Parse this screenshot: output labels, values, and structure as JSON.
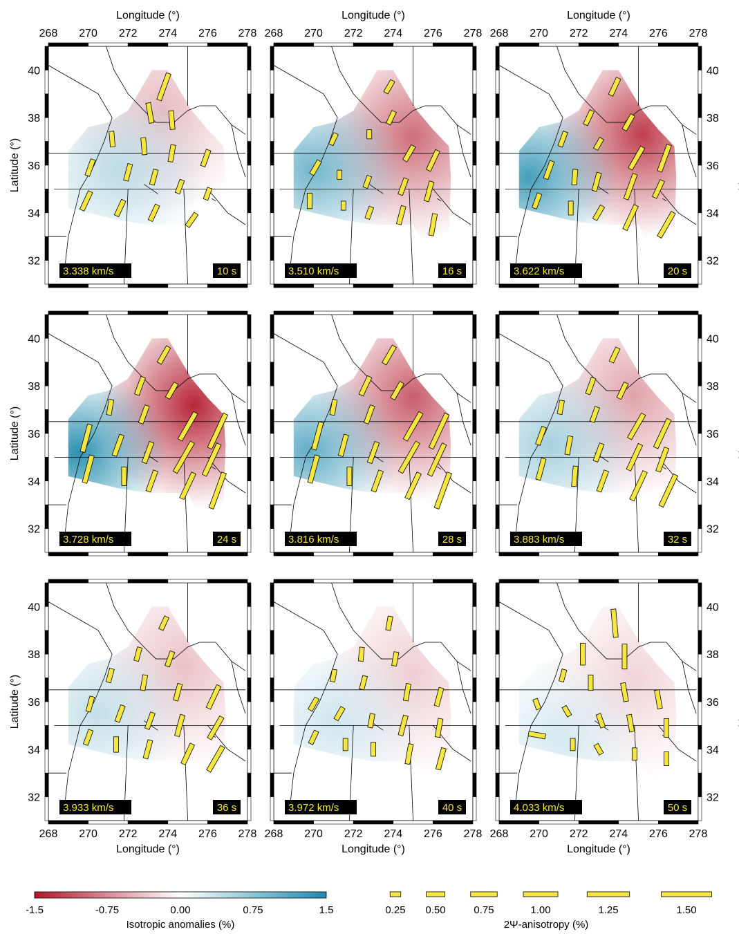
{
  "figure": {
    "x_axis_label": "Longitude (°)",
    "y_axis_label": "Latitude (°)",
    "x_ticks": [
      "268",
      "270",
      "272",
      "274",
      "276",
      "278"
    ],
    "y_ticks": [
      "32",
      "34",
      "36",
      "38",
      "40"
    ]
  },
  "chart_data": [
    {
      "type": "heatmap",
      "period_label": "10 s",
      "velocity_label": "3.338 km/s",
      "x_range": [
        268,
        278
      ],
      "y_range": [
        31,
        41
      ],
      "max_anomaly": 0.45,
      "centers": {
        "red": [
          273.7,
          38.3
        ],
        "blue": [
          271.5,
          35.8
        ]
      },
      "bars": [
        [
          273.8,
          39.3,
          20,
          0.8
        ],
        [
          273.1,
          38.2,
          -10,
          0.55
        ],
        [
          274.2,
          37.9,
          -5,
          0.5
        ],
        [
          271.2,
          37.1,
          -5,
          0.4
        ],
        [
          272.8,
          36.8,
          -5,
          0.45
        ],
        [
          274.2,
          36.5,
          10,
          0.45
        ],
        [
          275.9,
          36.3,
          20,
          0.45
        ],
        [
          270.1,
          35.9,
          20,
          0.45
        ],
        [
          272.0,
          35.7,
          15,
          0.45
        ],
        [
          273.3,
          35.5,
          15,
          0.4
        ],
        [
          274.6,
          35.1,
          20,
          0.35
        ],
        [
          276.0,
          34.8,
          20,
          0.3
        ],
        [
          269.9,
          34.5,
          25,
          0.55
        ],
        [
          271.6,
          34.2,
          25,
          0.45
        ],
        [
          273.3,
          34.0,
          25,
          0.45
        ],
        [
          275.2,
          33.7,
          35,
          0.4
        ]
      ]
    },
    {
      "type": "heatmap",
      "period_label": "16 s",
      "velocity_label": "3.510 km/s",
      "x_range": [
        268,
        278
      ],
      "y_range": [
        31,
        41
      ],
      "max_anomaly": 0.95,
      "centers": {
        "red": [
          275.0,
          37.2
        ],
        "blue": [
          270.0,
          35.8
        ]
      },
      "bars": [
        [
          273.8,
          39.3,
          30,
          0.35
        ],
        [
          273.9,
          38.0,
          25,
          0.35
        ],
        [
          272.8,
          37.3,
          0,
          0.2
        ],
        [
          271.0,
          37.1,
          25,
          0.3
        ],
        [
          274.8,
          36.5,
          30,
          0.45
        ],
        [
          276.0,
          36.2,
          25,
          0.6
        ],
        [
          270.1,
          35.9,
          30,
          0.4
        ],
        [
          271.3,
          35.6,
          0,
          0.2
        ],
        [
          272.7,
          35.3,
          20,
          0.3
        ],
        [
          274.5,
          35.1,
          20,
          0.45
        ],
        [
          275.8,
          34.9,
          15,
          0.55
        ],
        [
          269.8,
          34.5,
          0,
          0.4
        ],
        [
          271.5,
          34.3,
          0,
          0.2
        ],
        [
          272.8,
          34.0,
          20,
          0.3
        ],
        [
          274.4,
          33.9,
          15,
          0.5
        ],
        [
          276.0,
          33.5,
          10,
          0.6
        ]
      ]
    },
    {
      "type": "heatmap",
      "period_label": "20 s",
      "velocity_label": "3.622 km/s",
      "x_range": [
        268,
        278
      ],
      "y_range": [
        31,
        41
      ],
      "max_anomaly": 1.25,
      "centers": {
        "red": [
          275.2,
          37.3
        ],
        "blue": [
          269.5,
          35.5
        ]
      },
      "bars": [
        [
          273.8,
          39.3,
          25,
          0.5
        ],
        [
          272.5,
          38.0,
          25,
          0.4
        ],
        [
          274.5,
          37.8,
          30,
          0.45
        ],
        [
          271.2,
          37.1,
          20,
          0.4
        ],
        [
          273.0,
          36.9,
          30,
          0.3
        ],
        [
          274.9,
          36.3,
          30,
          0.7
        ],
        [
          276.3,
          36.3,
          20,
          0.8
        ],
        [
          270.5,
          35.8,
          20,
          0.5
        ],
        [
          271.8,
          35.5,
          5,
          0.4
        ],
        [
          272.9,
          35.3,
          15,
          0.5
        ],
        [
          274.6,
          35.1,
          20,
          0.75
        ],
        [
          276.0,
          35.0,
          25,
          0.5
        ],
        [
          269.9,
          34.5,
          20,
          0.4
        ],
        [
          271.6,
          34.2,
          0,
          0.35
        ],
        [
          273.0,
          34.0,
          30,
          0.4
        ],
        [
          274.6,
          33.8,
          25,
          0.75
        ],
        [
          276.4,
          33.5,
          30,
          0.8
        ]
      ]
    },
    {
      "type": "heatmap",
      "period_label": "24 s",
      "velocity_label": "3.728 km/s",
      "x_range": [
        268,
        278
      ],
      "y_range": [
        31,
        41
      ],
      "max_anomaly": 1.4,
      "centers": {
        "red": [
          275.3,
          37.2
        ],
        "blue": [
          269.5,
          35.2
        ]
      },
      "bars": [
        [
          273.8,
          39.3,
          30,
          0.5
        ],
        [
          272.6,
          38.0,
          20,
          0.5
        ],
        [
          274.2,
          37.8,
          30,
          0.45
        ],
        [
          271.1,
          37.1,
          10,
          0.4
        ],
        [
          272.8,
          36.8,
          20,
          0.5
        ],
        [
          275.0,
          36.3,
          30,
          0.9
        ],
        [
          276.5,
          36.1,
          25,
          1.1
        ],
        [
          269.9,
          35.8,
          15,
          0.8
        ],
        [
          271.5,
          35.5,
          20,
          0.6
        ],
        [
          273.0,
          35.2,
          20,
          0.6
        ],
        [
          274.8,
          35.0,
          30,
          1.0
        ],
        [
          276.2,
          34.9,
          25,
          1.0
        ],
        [
          270.0,
          34.5,
          15,
          0.8
        ],
        [
          271.8,
          34.2,
          0,
          0.5
        ],
        [
          273.2,
          34.0,
          20,
          0.6
        ],
        [
          275.0,
          33.8,
          25,
          0.8
        ],
        [
          276.5,
          33.6,
          20,
          1.1
        ]
      ]
    },
    {
      "type": "heatmap",
      "period_label": "28 s",
      "velocity_label": "3.816 km/s",
      "x_range": [
        268,
        278
      ],
      "y_range": [
        31,
        41
      ],
      "max_anomaly": 1.05,
      "centers": {
        "red": [
          275.0,
          37.5
        ],
        "blue": [
          269.8,
          35.3
        ]
      },
      "bars": [
        [
          273.8,
          39.3,
          30,
          0.55
        ],
        [
          272.6,
          38.0,
          25,
          0.55
        ],
        [
          274.2,
          37.8,
          30,
          0.5
        ],
        [
          271.0,
          37.1,
          10,
          0.4
        ],
        [
          272.8,
          36.8,
          20,
          0.5
        ],
        [
          275.0,
          36.3,
          30,
          0.9
        ],
        [
          276.3,
          36.1,
          25,
          1.1
        ],
        [
          270.2,
          35.9,
          15,
          0.8
        ],
        [
          271.5,
          35.5,
          15,
          0.6
        ],
        [
          273.0,
          35.2,
          20,
          0.6
        ],
        [
          274.8,
          35.0,
          30,
          1.0
        ],
        [
          276.2,
          34.9,
          25,
          1.0
        ],
        [
          270.0,
          34.5,
          15,
          0.8
        ],
        [
          271.8,
          34.2,
          0,
          0.5
        ],
        [
          273.2,
          34.0,
          20,
          0.6
        ],
        [
          275.0,
          33.8,
          25,
          0.8
        ],
        [
          276.5,
          33.6,
          20,
          1.1
        ]
      ]
    },
    {
      "type": "heatmap",
      "period_label": "32 s",
      "velocity_label": "3.883 km/s",
      "x_range": [
        268,
        278
      ],
      "y_range": [
        31,
        41
      ],
      "max_anomaly": 0.6,
      "centers": {
        "red": [
          274.8,
          37.6
        ],
        "blue": [
          270.5,
          35.5
        ]
      },
      "bars": [
        [
          273.8,
          39.3,
          25,
          0.4
        ],
        [
          272.6,
          38.0,
          20,
          0.45
        ],
        [
          274.2,
          37.8,
          25,
          0.45
        ],
        [
          271.1,
          37.1,
          10,
          0.35
        ],
        [
          272.8,
          36.8,
          20,
          0.4
        ],
        [
          274.9,
          36.3,
          30,
          0.8
        ],
        [
          276.2,
          36.0,
          25,
          0.9
        ],
        [
          270.1,
          35.9,
          20,
          0.5
        ],
        [
          271.5,
          35.5,
          10,
          0.5
        ],
        [
          273.0,
          35.2,
          20,
          0.5
        ],
        [
          274.8,
          35.0,
          25,
          0.8
        ],
        [
          276.2,
          34.9,
          20,
          0.7
        ],
        [
          270.1,
          34.5,
          15,
          0.6
        ],
        [
          271.8,
          34.2,
          5,
          0.55
        ],
        [
          273.2,
          34.0,
          20,
          0.6
        ],
        [
          275.0,
          33.8,
          25,
          0.9
        ],
        [
          276.5,
          33.6,
          25,
          1.0
        ]
      ]
    },
    {
      "type": "heatmap",
      "period_label": "36 s",
      "velocity_label": "3.933 km/s",
      "x_range": [
        268,
        278
      ],
      "y_range": [
        31,
        41
      ],
      "max_anomaly": 0.4,
      "centers": {
        "red": [
          274.8,
          37.5
        ],
        "blue": [
          270.5,
          35.5
        ]
      },
      "bars": [
        [
          273.8,
          39.3,
          25,
          0.35
        ],
        [
          272.5,
          38.0,
          15,
          0.35
        ],
        [
          274.1,
          37.8,
          20,
          0.4
        ],
        [
          271.1,
          37.1,
          15,
          0.35
        ],
        [
          272.8,
          36.8,
          10,
          0.4
        ],
        [
          274.5,
          36.4,
          15,
          0.45
        ],
        [
          276.3,
          36.2,
          25,
          0.7
        ],
        [
          270.1,
          35.9,
          15,
          0.4
        ],
        [
          271.6,
          35.5,
          20,
          0.45
        ],
        [
          273.1,
          35.2,
          20,
          0.45
        ],
        [
          274.6,
          35.0,
          15,
          0.6
        ],
        [
          276.4,
          34.9,
          30,
          0.7
        ],
        [
          270.0,
          34.5,
          20,
          0.4
        ],
        [
          271.4,
          34.2,
          0,
          0.4
        ],
        [
          273.0,
          34.0,
          15,
          0.5
        ],
        [
          275.0,
          33.8,
          25,
          0.6
        ],
        [
          276.4,
          33.6,
          30,
          0.8
        ]
      ]
    },
    {
      "type": "heatmap",
      "period_label": "40 s",
      "velocity_label": "3.972 km/s",
      "x_range": [
        268,
        278
      ],
      "y_range": [
        31,
        41
      ],
      "max_anomaly": 0.32,
      "centers": {
        "red": [
          275.0,
          37.2
        ],
        "blue": [
          271.0,
          35.2
        ]
      },
      "bars": [
        [
          273.8,
          39.3,
          10,
          0.35
        ],
        [
          272.4,
          38.0,
          5,
          0.35
        ],
        [
          274.1,
          37.8,
          10,
          0.35
        ],
        [
          271.0,
          37.1,
          10,
          0.3
        ],
        [
          272.5,
          36.8,
          15,
          0.35
        ],
        [
          274.7,
          36.4,
          10,
          0.45
        ],
        [
          276.3,
          36.2,
          15,
          0.5
        ],
        [
          270.0,
          35.9,
          30,
          0.35
        ],
        [
          271.3,
          35.5,
          30,
          0.35
        ],
        [
          272.9,
          35.2,
          10,
          0.35
        ],
        [
          274.5,
          35.0,
          15,
          0.55
        ],
        [
          276.3,
          34.9,
          10,
          0.5
        ],
        [
          270.0,
          34.5,
          25,
          0.35
        ],
        [
          271.6,
          34.2,
          0,
          0.3
        ],
        [
          273.0,
          34.0,
          0,
          0.35
        ],
        [
          274.8,
          33.8,
          10,
          0.55
        ],
        [
          276.4,
          33.6,
          15,
          0.6
        ]
      ]
    },
    {
      "type": "heatmap",
      "period_label": "50 s",
      "velocity_label": "4.033 km/s",
      "x_range": [
        268,
        278
      ],
      "y_range": [
        31,
        41
      ],
      "max_anomaly": 0.28,
      "centers": {
        "red": [
          274.8,
          37.0
        ],
        "blue": [
          271.0,
          34.5
        ]
      },
      "bars": [
        [
          273.8,
          39.3,
          -5,
          0.8
        ],
        [
          272.2,
          38.0,
          0,
          0.6
        ],
        [
          274.3,
          37.9,
          0,
          0.7
        ],
        [
          271.2,
          37.1,
          15,
          0.3
        ],
        [
          272.6,
          36.8,
          0,
          0.4
        ],
        [
          274.3,
          36.4,
          -10,
          0.5
        ],
        [
          276.0,
          36.1,
          -10,
          0.5
        ],
        [
          269.9,
          35.9,
          -20,
          0.25
        ],
        [
          271.4,
          35.6,
          -30,
          0.25
        ],
        [
          273.1,
          35.2,
          -20,
          0.35
        ],
        [
          274.6,
          35.1,
          -10,
          0.45
        ],
        [
          276.4,
          34.9,
          0,
          0.5
        ],
        [
          269.9,
          34.6,
          -80,
          0.45
        ],
        [
          271.7,
          34.2,
          0,
          0.3
        ],
        [
          273.0,
          34.0,
          -30,
          0.25
        ],
        [
          274.8,
          33.8,
          0,
          0.3
        ],
        [
          276.4,
          33.6,
          0,
          0.35
        ]
      ]
    }
  ],
  "colorbar_iso": {
    "title": "Isotropic anomalies (%)",
    "tick_labels": [
      "-1.5",
      "-0.75",
      "0.00",
      "0.75",
      "1.5"
    ],
    "colors": [
      "#b2182b",
      "#ffffff",
      "#1e8aad"
    ]
  },
  "anisotropy_legend": {
    "title": "2Ψ-anisotropy (%)",
    "values": [
      0.25,
      0.5,
      0.75,
      1.0,
      1.25,
      1.5
    ],
    "labels": [
      "0.25",
      "0.50",
      "0.75",
      "1.00",
      "1.25",
      "1.50"
    ],
    "bar_color": "#f5e642"
  },
  "colors": {
    "bar_fill": "#f5e642",
    "label_box": "#000000",
    "label_text": "#f5e642"
  }
}
